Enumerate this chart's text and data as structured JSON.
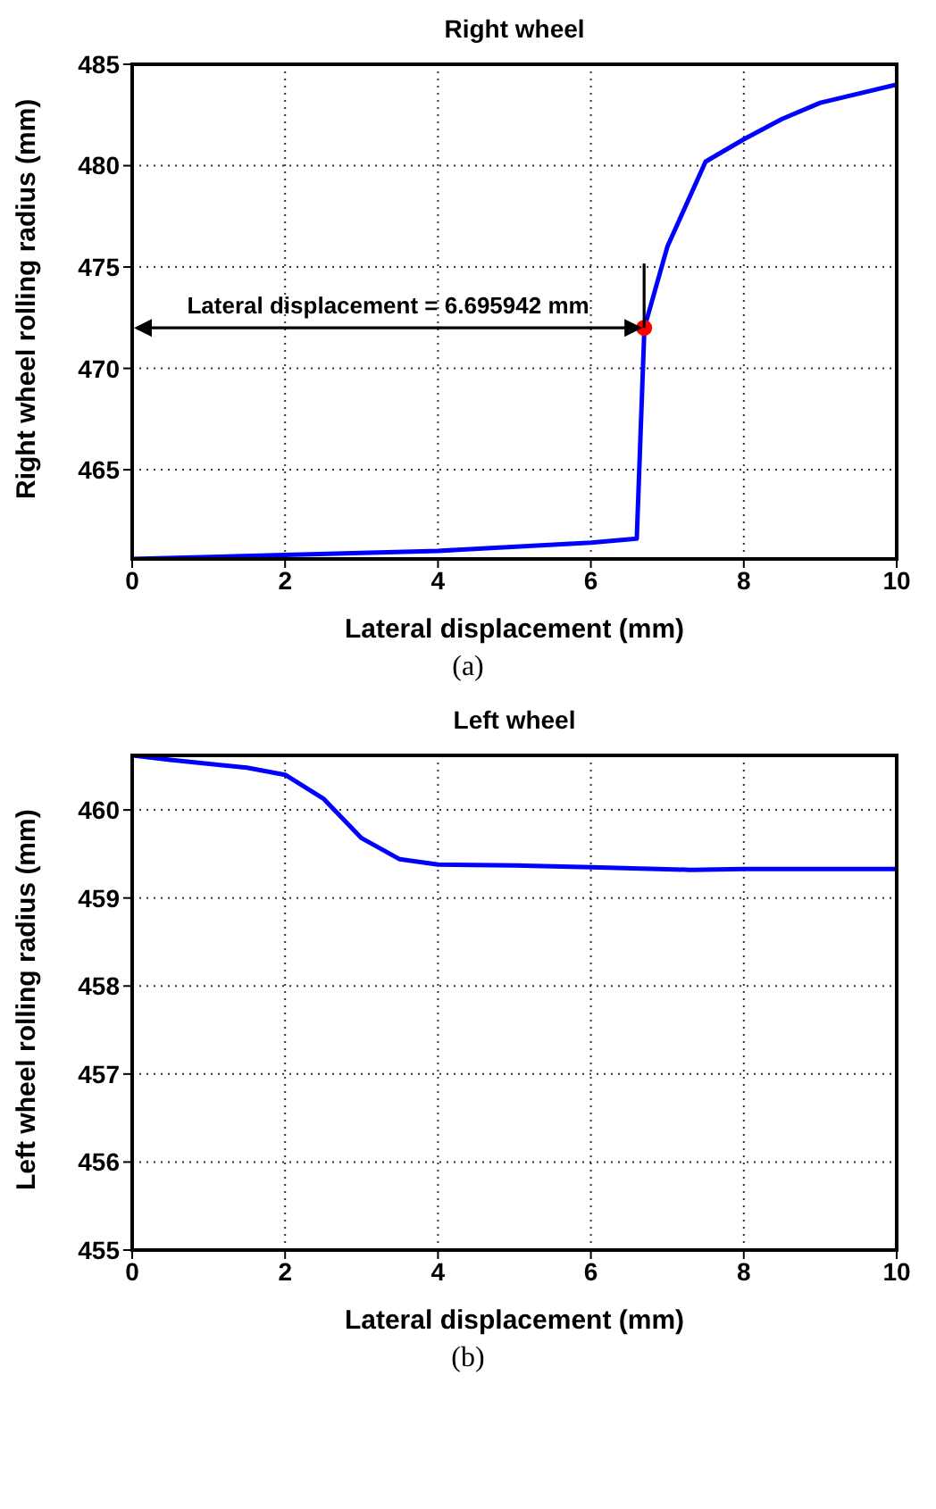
{
  "chart_data": [
    {
      "type": "line",
      "title": "Right wheel",
      "xlabel": "Lateral displacement (mm)",
      "ylabel": "Right wheel rolling radius (mm)",
      "xlim": [
        0,
        10
      ],
      "xticks": [
        0,
        2,
        4,
        6,
        8,
        10
      ],
      "ylim": [
        460.6,
        485
      ],
      "yticks": [
        465,
        470,
        475,
        480,
        485
      ],
      "grid": true,
      "series": [
        {
          "color": "#0000ff",
          "x": [
            0,
            2,
            4,
            6,
            6.6,
            6.7,
            7,
            7.5,
            8,
            8.5,
            9,
            10
          ],
          "values": [
            460.6,
            460.8,
            461.0,
            461.4,
            461.6,
            472,
            476,
            480.2,
            481.3,
            482.3,
            483.1,
            484.0
          ]
        },
        {
          "type": "scatter",
          "color": "#ff0000",
          "x": [
            6.695942
          ],
          "values": [
            472
          ]
        }
      ],
      "annotations": [
        {
          "text": "Lateral displacement = 6.695942 mm",
          "x": 6.695942,
          "y": 472
        },
        "(a)"
      ]
    },
    {
      "type": "line",
      "title": "Left wheel",
      "xlabel": "Lateral displacement (mm)",
      "ylabel": "Left wheel rolling radius (mm)",
      "xlim": [
        0,
        10
      ],
      "xticks": [
        0,
        2,
        4,
        6,
        8,
        10
      ],
      "ylim": [
        455,
        460.62
      ],
      "yticks": [
        455,
        456,
        457,
        458,
        459,
        460
      ],
      "grid": true,
      "series": [
        {
          "color": "#0000ff",
          "x": [
            0,
            0.5,
            1.5,
            2,
            2.5,
            3,
            3.5,
            4,
            5,
            6,
            7.3,
            8,
            10
          ],
          "values": [
            460.62,
            460.57,
            460.48,
            460.4,
            460.13,
            459.68,
            459.44,
            459.38,
            459.37,
            459.35,
            459.32,
            459.33,
            459.33
          ]
        }
      ],
      "annotations": [
        "(b)"
      ]
    }
  ]
}
